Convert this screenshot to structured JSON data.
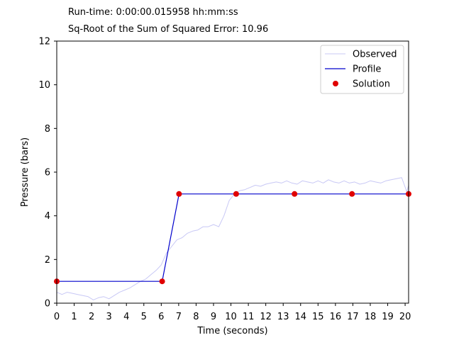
{
  "header": {
    "runtime_label": "Run-time:",
    "runtime_value": "0:00:00.015958",
    "runtime_unit": "hh:mm:ss",
    "error_label": "Sq-Root of the Sum of Squared Error:",
    "error_value": "10.96"
  },
  "colors": {
    "observed": "#c8c8f5",
    "profile": "#0000cc",
    "solution": "#e00000"
  },
  "chart_data": {
    "type": "line",
    "xlabel": "Time (seconds)",
    "ylabel": "Pressure (bars)",
    "xlim": [
      0,
      20.2
    ],
    "ylim": [
      0,
      12
    ],
    "xticks": [
      0,
      1,
      2,
      3,
      4,
      5,
      6,
      7,
      8,
      9,
      10,
      11,
      12,
      13,
      14,
      15,
      16,
      17,
      18,
      19,
      20
    ],
    "yticks": [
      0,
      2,
      4,
      6,
      8,
      10,
      12
    ],
    "grid": false,
    "legend_position": "top-right",
    "legend": [
      "Observed",
      "Profile",
      "Solution"
    ],
    "series": [
      {
        "name": "Observed",
        "style": "line",
        "x": [
          0,
          0.3,
          0.6,
          0.9,
          1.2,
          1.5,
          1.8,
          2.1,
          2.4,
          2.7,
          3.0,
          3.3,
          3.6,
          3.9,
          4.2,
          4.5,
          4.8,
          5.1,
          5.4,
          5.7,
          6.0,
          6.3,
          6.6,
          6.9,
          7.2,
          7.5,
          7.8,
          8.1,
          8.4,
          8.7,
          9.0,
          9.3,
          9.6,
          9.9,
          10.2,
          10.5,
          10.8,
          11.1,
          11.4,
          11.7,
          12.0,
          12.3,
          12.6,
          12.9,
          13.2,
          13.5,
          13.8,
          14.1,
          14.4,
          14.7,
          15.0,
          15.3,
          15.6,
          15.9,
          16.2,
          16.5,
          16.8,
          17.1,
          17.4,
          17.7,
          18.0,
          18.3,
          18.6,
          18.9,
          19.2,
          19.5,
          19.8,
          20.1,
          20.2
        ],
        "y": [
          0.5,
          0.4,
          0.5,
          0.45,
          0.4,
          0.35,
          0.3,
          0.15,
          0.25,
          0.3,
          0.2,
          0.35,
          0.5,
          0.6,
          0.7,
          0.85,
          1.0,
          1.1,
          1.3,
          1.5,
          1.75,
          2.3,
          2.6,
          2.9,
          3.0,
          3.2,
          3.3,
          3.35,
          3.5,
          3.5,
          3.6,
          3.5,
          4.0,
          4.7,
          5.0,
          5.15,
          5.2,
          5.3,
          5.4,
          5.35,
          5.45,
          5.5,
          5.55,
          5.5,
          5.6,
          5.5,
          5.45,
          5.6,
          5.55,
          5.5,
          5.6,
          5.5,
          5.65,
          5.55,
          5.5,
          5.6,
          5.5,
          5.55,
          5.45,
          5.5,
          5.6,
          5.55,
          5.5,
          5.6,
          5.65,
          5.7,
          5.75,
          5.1,
          5.4
        ]
      },
      {
        "name": "Profile",
        "style": "line",
        "x": [
          0,
          6.05,
          7.02,
          10.3,
          13.65,
          16.95,
          20.2
        ],
        "y": [
          1.0,
          1.0,
          5.0,
          5.0,
          5.0,
          5.0,
          5.0
        ]
      },
      {
        "name": "Solution",
        "style": "scatter",
        "x": [
          0,
          6.05,
          7.02,
          10.3,
          13.65,
          16.95,
          20.2
        ],
        "y": [
          1.0,
          1.0,
          5.0,
          5.0,
          5.0,
          5.0,
          5.0
        ]
      }
    ]
  }
}
